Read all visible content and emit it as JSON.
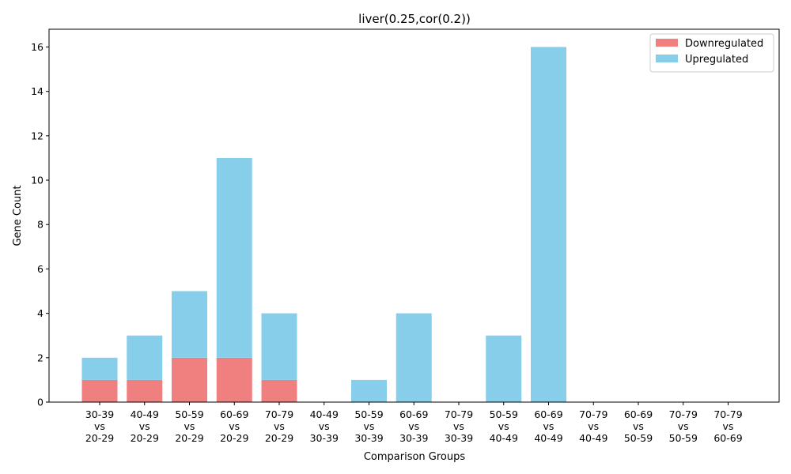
{
  "chart_data": {
    "type": "bar",
    "stacked": true,
    "title": "liver(0.25,cor(0.2))",
    "xlabel": "Comparison Groups",
    "ylabel": "Gene Count",
    "ylim": [
      0,
      16.8
    ],
    "yticks": [
      0,
      2,
      4,
      6,
      8,
      10,
      12,
      14,
      16
    ],
    "grid": false,
    "legend_position": "top-right",
    "categories": [
      [
        "30-39",
        "vs",
        "20-29"
      ],
      [
        "40-49",
        "vs",
        "20-29"
      ],
      [
        "50-59",
        "vs",
        "20-29"
      ],
      [
        "60-69",
        "vs",
        "20-29"
      ],
      [
        "70-79",
        "vs",
        "20-29"
      ],
      [
        "40-49",
        "vs",
        "30-39"
      ],
      [
        "50-59",
        "vs",
        "30-39"
      ],
      [
        "60-69",
        "vs",
        "30-39"
      ],
      [
        "70-79",
        "vs",
        "30-39"
      ],
      [
        "50-59",
        "vs",
        "40-49"
      ],
      [
        "60-69",
        "vs",
        "40-49"
      ],
      [
        "70-79",
        "vs",
        "40-49"
      ],
      [
        "60-69",
        "vs",
        "50-59"
      ],
      [
        "70-79",
        "vs",
        "50-59"
      ],
      [
        "70-79",
        "vs",
        "60-69"
      ]
    ],
    "series": [
      {
        "name": "Downregulated",
        "color": "#f08080",
        "values": [
          1,
          1,
          2,
          2,
          1,
          0,
          0,
          0,
          0,
          0,
          0,
          0,
          0,
          0,
          0
        ]
      },
      {
        "name": "Upregulated",
        "color": "#87ceeb",
        "values": [
          1,
          2,
          3,
          9,
          3,
          0,
          1,
          4,
          0,
          3,
          16,
          0,
          0,
          0,
          0
        ]
      }
    ]
  }
}
